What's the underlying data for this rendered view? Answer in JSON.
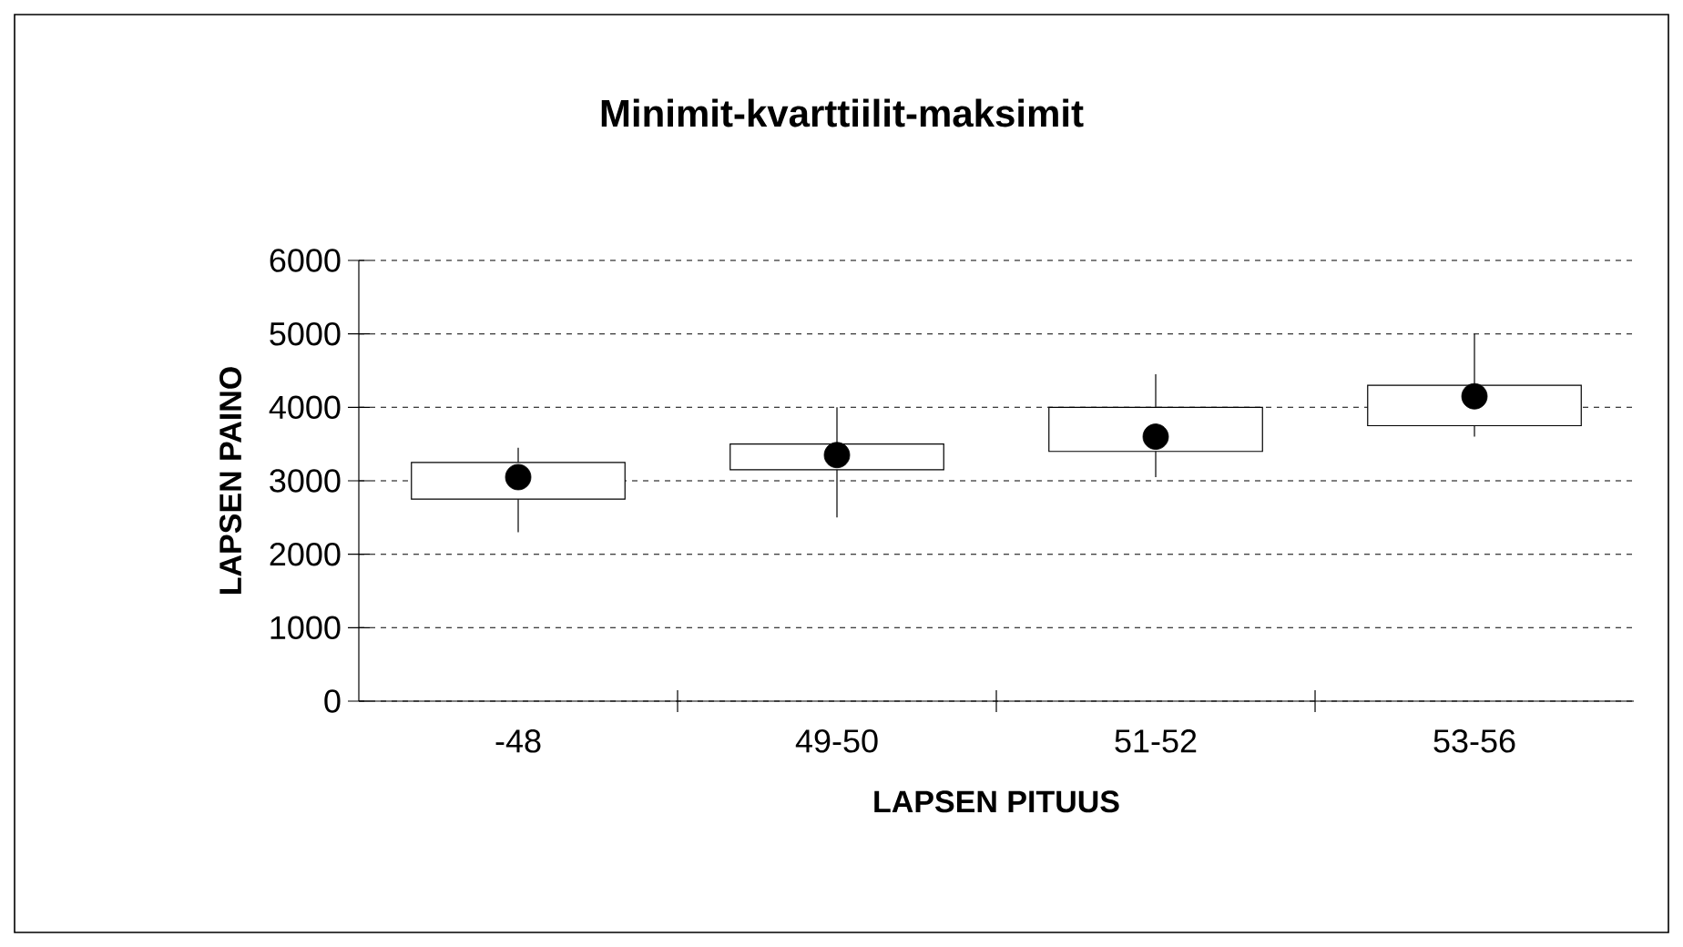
{
  "chart_data": {
    "type": "box",
    "title": "Minimit-kvarttiilit-maksimit",
    "xlabel": "LAPSEN PITUUS",
    "ylabel": "LAPSEN PAINO",
    "categories": [
      "-48",
      "49-50",
      "51-52",
      "53-56"
    ],
    "boxes": [
      {
        "low": 2300,
        "q1": 2750,
        "median": 3050,
        "q3": 3250,
        "high": 3450
      },
      {
        "low": 2500,
        "q1": 3150,
        "median": 3350,
        "q3": 3500,
        "high": 4000
      },
      {
        "low": 3050,
        "q1": 3400,
        "median": 3600,
        "q3": 4000,
        "high": 4450
      },
      {
        "low": 3600,
        "q1": 3750,
        "median": 4150,
        "q3": 4300,
        "high": 5000
      }
    ],
    "ylim": [
      0,
      6000
    ],
    "yticks": [
      0,
      1000,
      2000,
      3000,
      4000,
      5000,
      6000
    ],
    "grid": "y",
    "marker": "circle"
  }
}
